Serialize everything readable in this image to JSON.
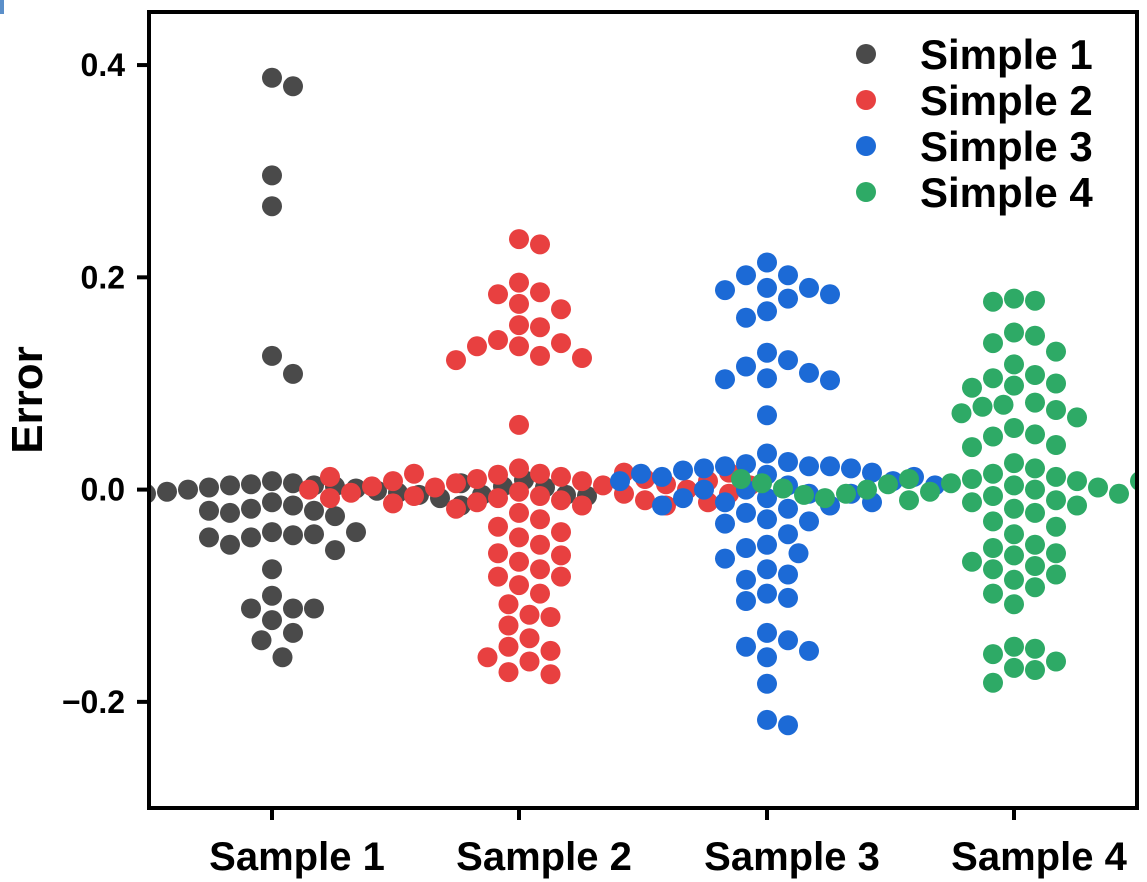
{
  "chart_data": {
    "type": "scatter",
    "subtype": "beeswarm",
    "title": "",
    "xlabel": "",
    "ylabel": "Error",
    "ylim": [
      -0.3,
      0.45
    ],
    "yticks": [
      0.4,
      0.2,
      0.0,
      -0.2
    ],
    "ytick_labels": [
      "0.4",
      "0.2",
      "0.0",
      "−0.2"
    ],
    "categories": [
      "Sample 1",
      "Sample 2",
      "Sample 3",
      "Sample 4"
    ],
    "legend_position": "top-right",
    "series": [
      {
        "name": "Simple 1",
        "color": "#4a4a4a",
        "category": "Sample 1",
        "values": [
          0.388,
          0.38,
          0.296,
          0.267,
          0.126,
          0.109,
          -0.04,
          -0.043,
          -0.045,
          -0.042,
          -0.052,
          -0.057,
          -0.045,
          -0.04,
          -0.075,
          -0.1,
          -0.112,
          -0.112,
          -0.112,
          -0.123,
          -0.135,
          -0.142,
          -0.158,
          0.008,
          0.006,
          0.005,
          0.004,
          0.004,
          0.003,
          0.002,
          0.001,
          0.0,
          -0.001,
          -0.002,
          -0.003,
          -0.004,
          -0.005,
          -0.006,
          -0.008,
          -0.01,
          -0.012,
          -0.015,
          -0.018,
          -0.02,
          -0.022,
          -0.025,
          -0.02,
          -0.015,
          -0.01,
          -0.005,
          0.0,
          0.003,
          0.006,
          0.008,
          0.01,
          0.012,
          0.009,
          0.005,
          0.002,
          -0.002,
          -0.005,
          -0.008,
          -0.006,
          -0.003
        ]
      },
      {
        "name": "Simple 2",
        "color": "#e84040",
        "category": "Sample 2",
        "values": [
          0.236,
          0.231,
          0.195,
          0.186,
          0.184,
          0.175,
          0.17,
          0.155,
          0.153,
          0.141,
          0.138,
          0.135,
          0.135,
          0.126,
          0.124,
          0.122,
          0.061,
          0.02,
          0.015,
          0.014,
          0.012,
          0.01,
          0.008,
          0.006,
          0.004,
          0.002,
          -0.002,
          -0.004,
          -0.006,
          -0.008,
          -0.01,
          -0.012,
          -0.015,
          -0.018,
          -0.022,
          -0.028,
          -0.035,
          -0.04,
          -0.045,
          -0.052,
          -0.06,
          -0.062,
          -0.068,
          -0.075,
          -0.082,
          -0.082,
          -0.09,
          -0.098,
          -0.108,
          -0.118,
          -0.12,
          -0.128,
          -0.14,
          -0.148,
          -0.152,
          -0.158,
          -0.162,
          -0.172,
          -0.174,
          0.016,
          0.015,
          0.01,
          0.008,
          0.005,
          0.003,
          0.0,
          -0.003,
          -0.006,
          -0.01,
          -0.013,
          -0.015,
          -0.012,
          -0.008,
          -0.004,
          0.0,
          0.004,
          0.008,
          0.012,
          0.016
        ]
      },
      {
        "name": "Simple 3",
        "color": "#1c6ad6",
        "category": "Sample 3",
        "values": [
          0.214,
          0.202,
          0.202,
          0.19,
          0.19,
          0.188,
          0.184,
          0.18,
          0.168,
          0.162,
          0.129,
          0.122,
          0.116,
          0.11,
          0.105,
          0.104,
          0.103,
          0.07,
          0.034,
          0.026,
          0.024,
          0.022,
          0.022,
          0.022,
          0.02,
          0.02,
          0.018,
          0.016,
          0.014,
          0.012,
          0.008,
          0.004,
          0.0,
          -0.004,
          -0.008,
          -0.012,
          -0.015,
          -0.018,
          -0.022,
          -0.028,
          -0.03,
          -0.032,
          -0.042,
          -0.052,
          -0.055,
          -0.06,
          -0.065,
          -0.075,
          -0.08,
          -0.085,
          -0.098,
          -0.102,
          -0.105,
          -0.135,
          -0.142,
          -0.148,
          -0.152,
          -0.158,
          -0.183,
          -0.217,
          -0.222,
          0.015,
          0.012,
          0.008,
          0.004,
          0.0,
          -0.004,
          -0.008,
          -0.012,
          -0.015
        ]
      },
      {
        "name": "Simple 4",
        "color": "#2eaa66",
        "category": "Sample 4",
        "values": [
          0.18,
          0.178,
          0.177,
          0.148,
          0.145,
          0.138,
          0.13,
          0.118,
          0.108,
          0.105,
          0.1,
          0.098,
          0.096,
          0.082,
          0.08,
          0.078,
          0.075,
          0.072,
          0.068,
          0.058,
          0.052,
          0.05,
          0.042,
          0.04,
          0.025,
          0.02,
          0.015,
          0.012,
          0.01,
          0.008,
          0.006,
          0.004,
          0.002,
          0.0,
          -0.002,
          -0.004,
          -0.006,
          -0.01,
          -0.012,
          -0.015,
          -0.018,
          -0.022,
          -0.03,
          -0.035,
          -0.042,
          -0.052,
          -0.055,
          -0.06,
          -0.062,
          -0.068,
          -0.072,
          -0.075,
          -0.08,
          -0.085,
          -0.092,
          -0.098,
          -0.108,
          -0.148,
          -0.15,
          -0.155,
          -0.162,
          -0.168,
          -0.17,
          -0.182,
          0.01,
          0.008,
          0.005,
          0.002,
          0.0,
          -0.002,
          -0.004,
          -0.006,
          -0.008,
          -0.01,
          -0.008,
          -0.005,
          -0.002,
          0.001,
          0.004,
          0.006,
          0.008,
          0.01
        ]
      }
    ]
  }
}
